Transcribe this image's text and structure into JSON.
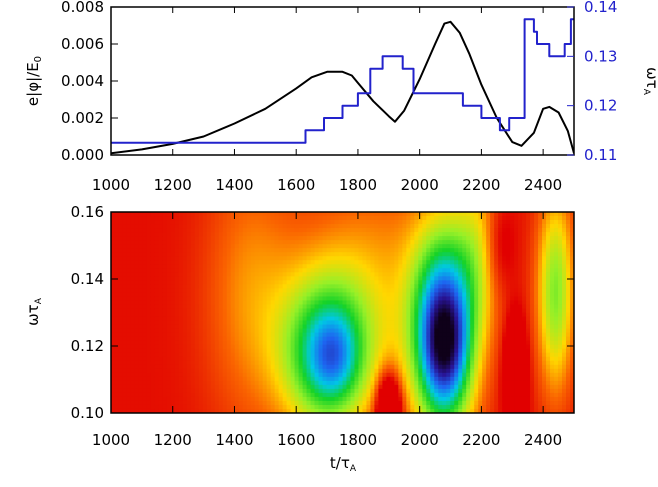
{
  "colors": {
    "black_series": "#000000",
    "blue_series": "#2222cc",
    "frame": "#000000"
  },
  "chart_data": [
    {
      "type": "line",
      "panel": "top",
      "title": "",
      "xlabel": "",
      "ylabel": "e|φ|/E",
      "ylabel_sub": "0",
      "y2label": "ωτ",
      "y2label_sub": "A",
      "xlim": [
        1000,
        2500
      ],
      "ylim": [
        0,
        0.008
      ],
      "y2lim": [
        0.11,
        0.14
      ],
      "x_ticks": [
        "1000",
        "1200",
        "1400",
        "1600",
        "1800",
        "2000",
        "2200",
        "2400"
      ],
      "y_ticks": [
        "0.000",
        "0.002",
        "0.004",
        "0.006",
        "0.008"
      ],
      "y2_ticks": [
        "0.11",
        "0.12",
        "0.13",
        "0.14"
      ],
      "series": [
        {
          "axis": "left",
          "color": "#000000",
          "x": [
            1000,
            1100,
            1200,
            1300,
            1400,
            1500,
            1600,
            1650,
            1700,
            1750,
            1780,
            1800,
            1850,
            1900,
            1920,
            1950,
            2000,
            2050,
            2080,
            2100,
            2130,
            2160,
            2200,
            2250,
            2300,
            2330,
            2370,
            2400,
            2420,
            2450,
            2480,
            2500
          ],
          "y": [
            0.0001,
            0.0003,
            0.0006,
            0.001,
            0.0017,
            0.0025,
            0.0036,
            0.0042,
            0.0045,
            0.0045,
            0.0043,
            0.0039,
            0.0029,
            0.0021,
            0.0018,
            0.0024,
            0.0041,
            0.006,
            0.0071,
            0.0072,
            0.0066,
            0.0055,
            0.0038,
            0.002,
            0.0007,
            0.0005,
            0.0012,
            0.0025,
            0.0026,
            0.0023,
            0.0013,
            0.0001
          ]
        },
        {
          "axis": "right",
          "color": "#2222cc",
          "step": true,
          "x": [
            1000,
            1630,
            1690,
            1750,
            1800,
            1840,
            1880,
            1945,
            1980,
            2140,
            2200,
            2260,
            2290,
            2340,
            2370,
            2380,
            2420,
            2470,
            2490,
            2500
          ],
          "y": [
            0.1125,
            0.115,
            0.1175,
            0.12,
            0.1225,
            0.1275,
            0.13,
            0.1275,
            0.1225,
            0.12,
            0.1175,
            0.115,
            0.1175,
            0.1375,
            0.135,
            0.1325,
            0.13,
            0.1325,
            0.1375,
            0.1375
          ]
        }
      ]
    },
    {
      "type": "heatmap",
      "panel": "bottom",
      "title": "",
      "xlabel": "t/τ",
      "xlabel_sub": "A",
      "ylabel": "ωτ",
      "ylabel_sub": "A",
      "xlim": [
        1000,
        2500
      ],
      "ylim": [
        0.1,
        0.16
      ],
      "x_ticks": [
        "1000",
        "1200",
        "1400",
        "1600",
        "1800",
        "2000",
        "2200",
        "2400"
      ],
      "y_ticks": [
        "0.10",
        "0.12",
        "0.14",
        "0.16"
      ],
      "colormap": "rainbow (red = low, violet/black = high)",
      "peaks": [
        {
          "t": 1700,
          "omega": 0.117,
          "level": 0.68
        },
        {
          "t": 2080,
          "omega": 0.122,
          "level": 1.0
        },
        {
          "t": 1900,
          "omega": 0.1,
          "level": -0.2
        },
        {
          "t": 2310,
          "omega": 0.11,
          "level": -0.1
        },
        {
          "t": 2440,
          "omega": 0.135,
          "level": 0.35
        }
      ]
    }
  ]
}
